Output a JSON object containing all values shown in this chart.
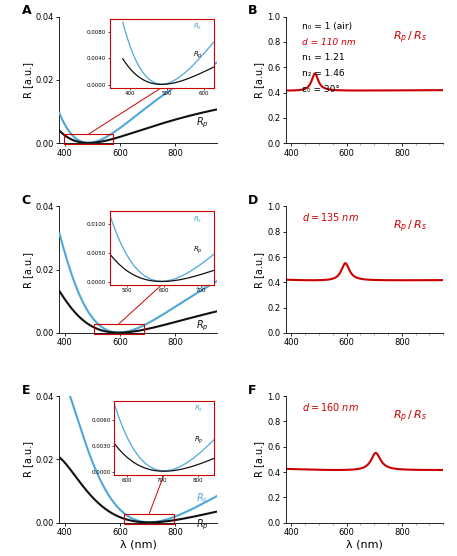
{
  "lambda_min": 380,
  "lambda_max": 950,
  "panels": [
    "A",
    "B",
    "C",
    "D",
    "E",
    "F"
  ],
  "thicknesses": [
    110,
    135,
    160
  ],
  "n0": 1.0,
  "n1": 1.21,
  "n2": 1.46,
  "theta0_deg": 30,
  "ylim_left": [
    0,
    0.04
  ],
  "ylim_right": [
    0,
    1
  ],
  "colors": {
    "Rs": "#4da8d8",
    "Rp": "#111111",
    "ratio": "#cc0000",
    "inset_box": "#cc0000",
    "arrow": "#cc0000"
  },
  "background": "#ffffff",
  "ylabel": "R [a.u.]",
  "xlabel": "λ (nm)",
  "panel_B_lines": [
    {
      "text": "n₀ = 1 (air)",
      "color": "black",
      "italic": false
    },
    {
      "text": "d = 110 nm",
      "color": "#cc0000",
      "italic": true
    },
    {
      "text": "n₁ = 1.21",
      "color": "black",
      "italic": false
    },
    {
      "text": "n₂ = 1.46",
      "color": "black",
      "italic": false
    },
    {
      "text": "ε₀ = 30°",
      "color": "black",
      "italic": false
    }
  ]
}
